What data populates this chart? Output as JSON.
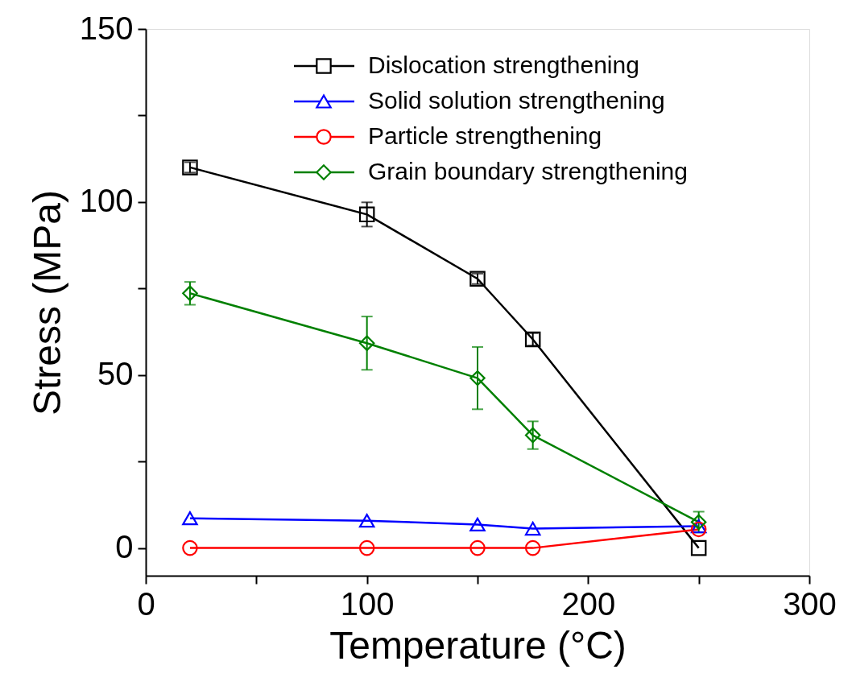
{
  "chart_data": {
    "type": "line",
    "xlabel": "Temperature (°C)",
    "ylabel": "Stress (MPa)",
    "x": [
      20,
      100,
      150,
      175,
      250
    ],
    "xlim": [
      0,
      300
    ],
    "ylim": [
      -8,
      150
    ],
    "xticks": [
      0,
      {
        "value": 50,
        "label": null
      },
      100,
      {
        "value": 150,
        "label": null
      },
      200,
      {
        "value": 250,
        "label": null
      },
      300
    ],
    "yticks": [
      0,
      {
        "value": 25,
        "label": null
      },
      50,
      {
        "value": 75,
        "label": null
      },
      100,
      {
        "value": 125,
        "label": null
      },
      150
    ],
    "grid": false,
    "legend": "top right",
    "line_style": "solid",
    "series": [
      {
        "name": "Dislocation strengthening",
        "color": "#000000",
        "marker": "square",
        "values": [
          110,
          96.4,
          77.8,
          60.3,
          0
        ],
        "errors": [
          1.5,
          3.5,
          1.5,
          1.8,
          null
        ]
      },
      {
        "name": "Solid solution strengthening",
        "color": "#0000ff",
        "marker": "triangle",
        "values": [
          8.6,
          7.9,
          6.8,
          5.6,
          6.3
        ]
      },
      {
        "name": "Particle strengthening",
        "color": "#ff0000",
        "marker": "circle",
        "values": [
          0,
          0,
          0,
          0,
          5.4
        ]
      },
      {
        "name": "Grain boundary strengthening",
        "color": "#008000",
        "marker": "diamond",
        "values": [
          73.6,
          59.2,
          49.1,
          32.6,
          7.5
        ],
        "errors": [
          3.3,
          7.7,
          9,
          4,
          3
        ]
      }
    ]
  }
}
